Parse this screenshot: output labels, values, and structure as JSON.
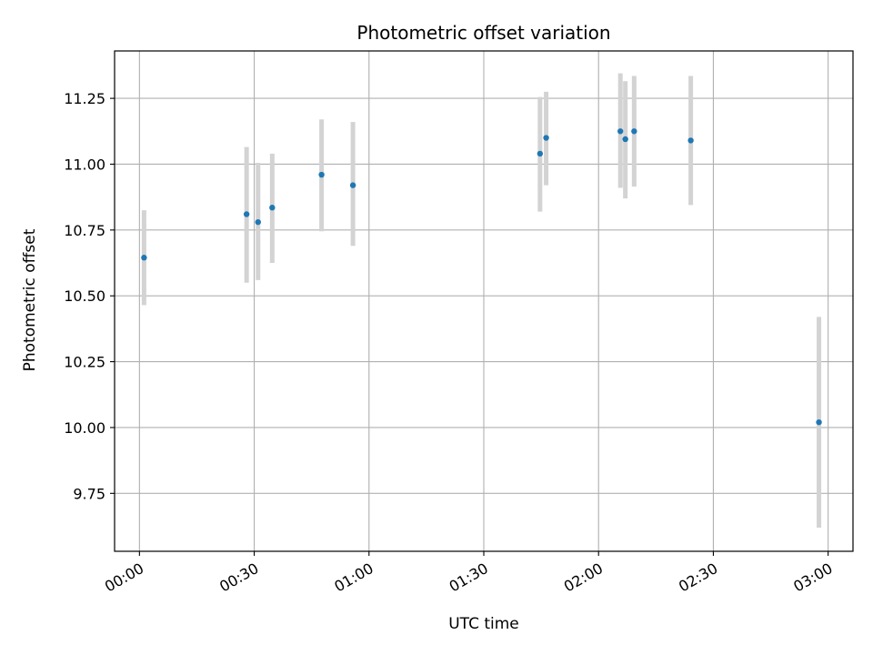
{
  "chart_data": {
    "type": "scatter",
    "title": "Photometric offset variation",
    "xlabel": "UTC time",
    "ylabel": "Photometric offset",
    "x_unit": "minutes after 00:00 UTC",
    "xlim": [
      -6.5,
      186.5
    ],
    "ylim": [
      9.53,
      11.43
    ],
    "x_ticks": [
      {
        "value": 0,
        "label": "00:00"
      },
      {
        "value": 30,
        "label": "00:30"
      },
      {
        "value": 60,
        "label": "01:00"
      },
      {
        "value": 90,
        "label": "01:30"
      },
      {
        "value": 120,
        "label": "02:00"
      },
      {
        "value": 150,
        "label": "02:30"
      },
      {
        "value": 180,
        "label": "03:00"
      }
    ],
    "y_ticks": [
      {
        "value": 9.75,
        "label": "9.75"
      },
      {
        "value": 10.0,
        "label": "10.00"
      },
      {
        "value": 10.25,
        "label": "10.25"
      },
      {
        "value": 10.5,
        "label": "10.50"
      },
      {
        "value": 10.75,
        "label": "10.75"
      },
      {
        "value": 11.0,
        "label": "11.00"
      },
      {
        "value": 11.25,
        "label": "11.25"
      }
    ],
    "grid": true,
    "series": [
      {
        "marker_color": "#1f77b4",
        "errorbar_color": "#d3d3d3",
        "points": [
          {
            "x": 1.2,
            "y": 10.645,
            "y_low": 10.465,
            "y_high": 10.825
          },
          {
            "x": 28.0,
            "y": 10.81,
            "y_low": 10.55,
            "y_high": 11.065
          },
          {
            "x": 31.0,
            "y": 10.78,
            "y_low": 10.56,
            "y_high": 11.005
          },
          {
            "x": 34.7,
            "y": 10.835,
            "y_low": 10.625,
            "y_high": 11.04
          },
          {
            "x": 47.6,
            "y": 10.96,
            "y_low": 10.745,
            "y_high": 11.17
          },
          {
            "x": 55.8,
            "y": 10.92,
            "y_low": 10.69,
            "y_high": 11.16
          },
          {
            "x": 104.7,
            "y": 11.04,
            "y_low": 10.82,
            "y_high": 11.255
          },
          {
            "x": 106.3,
            "y": 11.1,
            "y_low": 10.92,
            "y_high": 11.275
          },
          {
            "x": 125.7,
            "y": 11.125,
            "y_low": 10.91,
            "y_high": 11.345
          },
          {
            "x": 127.0,
            "y": 11.095,
            "y_low": 10.87,
            "y_high": 11.315
          },
          {
            "x": 129.3,
            "y": 11.125,
            "y_low": 10.915,
            "y_high": 11.335
          },
          {
            "x": 144.1,
            "y": 11.09,
            "y_low": 10.845,
            "y_high": 11.335
          },
          {
            "x": 177.6,
            "y": 10.02,
            "y_low": 9.62,
            "y_high": 10.42
          }
        ]
      }
    ]
  }
}
